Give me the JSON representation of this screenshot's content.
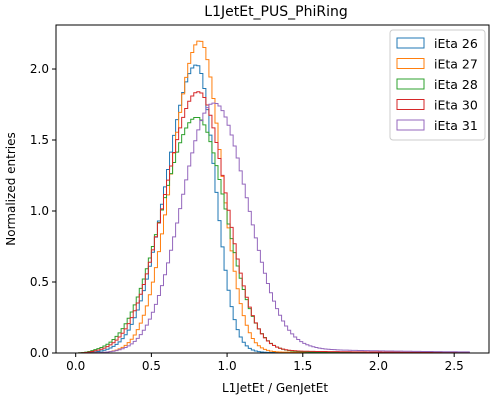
{
  "chart_data": {
    "type": "line",
    "style": "step-histogram",
    "title": "L1JetEt_PUS_PhiRing",
    "xlabel": "L1JetEt / GenJetEt",
    "ylabel": "Normalized entries",
    "xlim": [
      -0.13,
      2.73
    ],
    "ylim": [
      0,
      2.31
    ],
    "xticks": [
      0.0,
      0.5,
      1.0,
      1.5,
      2.0,
      2.5
    ],
    "xtick_labels": [
      "0.0",
      "0.5",
      "1.0",
      "1.5",
      "2.0",
      "2.5"
    ],
    "yticks": [
      0.0,
      0.5,
      1.0,
      1.5,
      2.0
    ],
    "ytick_labels": [
      "0.0",
      "0.5",
      "1.0",
      "1.5",
      "2.0"
    ],
    "grid": false,
    "legend_position": "top-right",
    "bin_width": 0.02,
    "x_start": 0.0,
    "x_end": 2.6,
    "series": [
      {
        "name": "iEta 26",
        "color": "#1f77b4",
        "peak_x": 0.8,
        "peak_y": 2.03,
        "sigma_left": 0.2,
        "sigma_right": 0.12,
        "tail_scale": 0.005,
        "tail_decay": 0.05
      },
      {
        "name": "iEta 27",
        "color": "#ff7f0e",
        "peak_x": 0.82,
        "peak_y": 2.2,
        "sigma_left": 0.18,
        "sigma_right": 0.14,
        "tail_scale": 0.008,
        "tail_decay": 0.1
      },
      {
        "name": "iEta 28",
        "color": "#2ca02c",
        "peak_x": 0.8,
        "peak_y": 1.66,
        "sigma_left": 0.23,
        "sigma_right": 0.19,
        "tail_scale": 0.012,
        "tail_decay": 0.12
      },
      {
        "name": "iEta 30",
        "color": "#d62728",
        "peak_x": 0.81,
        "peak_y": 1.84,
        "sigma_left": 0.22,
        "sigma_right": 0.18,
        "tail_scale": 0.02,
        "tail_decay": 0.18
      },
      {
        "name": "iEta 31",
        "color": "#9467bd",
        "peak_x": 0.91,
        "peak_y": 1.76,
        "sigma_left": 0.21,
        "sigma_right": 0.22,
        "tail_scale": 0.04,
        "tail_decay": 0.35
      }
    ]
  }
}
